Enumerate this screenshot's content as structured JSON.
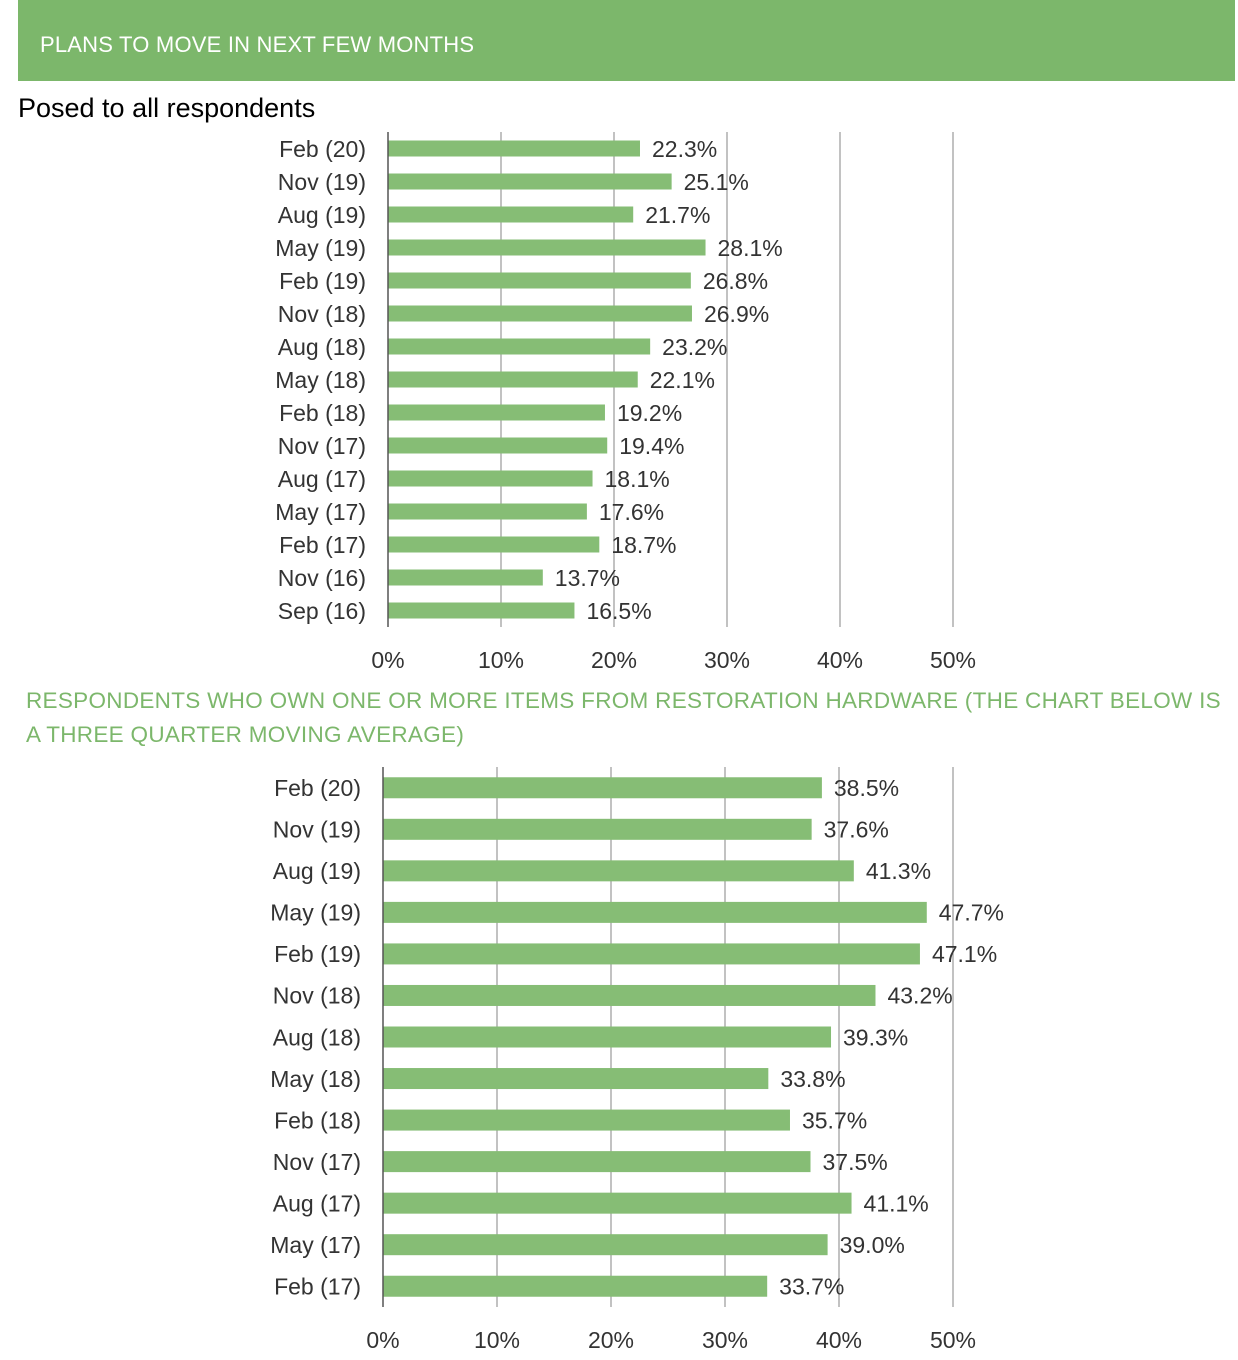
{
  "header": {
    "title": "PLANS TO MOVE IN NEXT FEW MONTHS",
    "subtitle": "Posed to all respondents"
  },
  "section2": {
    "title": "RESPONDENTS WHO OWN ONE OR MORE ITEMS FROM RESTORATION HARDWARE (THE CHART BELOW IS A THREE QUARTER MOVING AVERAGE)"
  },
  "colors": {
    "accent": "#7cb76b",
    "bar": "#86bd75",
    "gridline": "#999999",
    "axis": "#555555"
  },
  "chart_data": [
    {
      "type": "bar",
      "orientation": "horizontal",
      "categories": [
        "Feb (20)",
        "Nov (19)",
        "Aug (19)",
        "May (19)",
        "Feb (19)",
        "Nov (18)",
        "Aug (18)",
        "May (18)",
        "Feb (18)",
        "Nov (17)",
        "Aug (17)",
        "May (17)",
        "Feb (17)",
        "Nov (16)",
        "Sep (16)"
      ],
      "values": [
        22.3,
        25.1,
        21.7,
        28.1,
        26.8,
        26.9,
        23.2,
        22.1,
        19.2,
        19.4,
        18.1,
        17.6,
        18.7,
        13.7,
        16.5
      ],
      "value_labels": [
        "22.3%",
        "25.1%",
        "21.7%",
        "28.1%",
        "26.8%",
        "26.9%",
        "23.2%",
        "22.1%",
        "19.2%",
        "19.4%",
        "18.1%",
        "17.6%",
        "18.7%",
        "13.7%",
        "16.5%"
      ],
      "xticks": [
        "0%",
        "10%",
        "20%",
        "30%",
        "40%",
        "50%"
      ],
      "xlim": [
        0,
        50
      ],
      "grid": true
    },
    {
      "type": "bar",
      "orientation": "horizontal",
      "categories": [
        "Feb (20)",
        "Nov (19)",
        "Aug (19)",
        "May (19)",
        "Feb (19)",
        "Nov (18)",
        "Aug (18)",
        "May (18)",
        "Feb (18)",
        "Nov (17)",
        "Aug (17)",
        "May (17)",
        "Feb (17)"
      ],
      "values": [
        38.5,
        37.6,
        41.3,
        47.7,
        47.1,
        43.2,
        39.3,
        33.8,
        35.7,
        37.5,
        41.1,
        39.0,
        33.7
      ],
      "value_labels": [
        "38.5%",
        "37.6%",
        "41.3%",
        "47.7%",
        "47.1%",
        "43.2%",
        "39.3%",
        "33.8%",
        "35.7%",
        "37.5%",
        "41.1%",
        "39.0%",
        "33.7%"
      ],
      "xticks": [
        "0%",
        "10%",
        "20%",
        "30%",
        "40%",
        "50%"
      ],
      "xlim": [
        0,
        50
      ],
      "grid": true
    }
  ]
}
